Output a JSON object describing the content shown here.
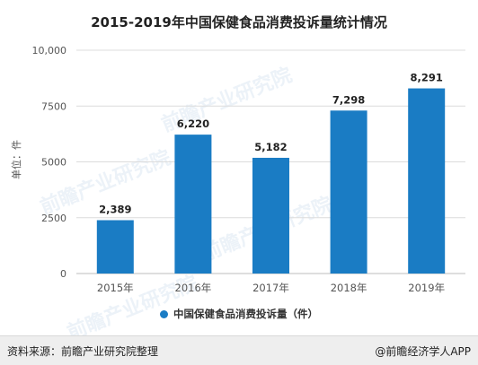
{
  "title": "2015-2019年中国保健食品消费投诉量统计情况",
  "footer": {
    "source": "资料来源：前瞻产业研究院整理",
    "credit": "@前瞻经济学人APP"
  },
  "watermark": {
    "text": "前瞻产业研究院"
  },
  "colors": {
    "bar": "#1a7cc4",
    "grid": "#dcdcdc",
    "axis_text": "#555555",
    "label_text": "#222222"
  },
  "chart_data": {
    "type": "bar",
    "title": "2015-2019年中国保健食品消费投诉量统计情况",
    "categories": [
      "2015年",
      "2016年",
      "2017年",
      "2018年",
      "2019年"
    ],
    "series": [
      {
        "name": "中国保健食品消费投诉量（件）",
        "values": [
          2389,
          6220,
          5182,
          7298,
          8291
        ],
        "data_labels": [
          "2,389",
          "6,220",
          "5,182",
          "7,298",
          "8,291"
        ]
      }
    ],
    "ylabel": "单位：件",
    "xlabel": "",
    "ylim": [
      0,
      10000
    ],
    "yticks": [
      0,
      2500,
      5000,
      7500,
      10000
    ],
    "ytick_labels": [
      "0",
      "2500",
      "5000",
      "7500",
      "10,000"
    ],
    "grid": "horizontal",
    "legend": "bottom-center"
  }
}
